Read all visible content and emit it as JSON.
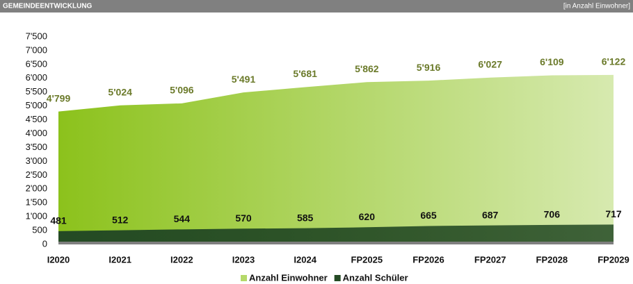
{
  "header": {
    "title": "GEMEINDEENTWICKLUNG",
    "unit": "[in Anzahl Einwohner]"
  },
  "chart_data": {
    "type": "area",
    "categories": [
      "I2020",
      "I2021",
      "I2022",
      "I2023",
      "I2024",
      "FP2025",
      "FP2026",
      "FP2027",
      "FP2028",
      "FP2029"
    ],
    "series": [
      {
        "name": "Anzahl Einwohner",
        "color": "#8cc21c",
        "label_color": "#6b7a2a",
        "values": [
          4799,
          5024,
          5096,
          5491,
          5681,
          5862,
          5916,
          6027,
          6109,
          6122
        ],
        "value_labels": [
          "4'799",
          "5'024",
          "5'096",
          "5'491",
          "5'681",
          "5'862",
          "5'916",
          "6'027",
          "6'109",
          "6'122"
        ]
      },
      {
        "name": "Anzahl Schüler",
        "color": "#244a24",
        "label_color": "#111111",
        "values": [
          481,
          512,
          544,
          570,
          585,
          620,
          665,
          687,
          706,
          717
        ]
      }
    ],
    "ylim": [
      0,
      7500
    ],
    "yticks": [
      0,
      500,
      {
        "value": 1000,
        "label": "1'000"
      },
      {
        "value": 1500,
        "label": "1'500"
      },
      {
        "value": 2000,
        "label": "2'000"
      },
      {
        "value": 2500,
        "label": "2'500"
      },
      {
        "value": 3000,
        "label": "3'000"
      },
      {
        "value": 3500,
        "label": "3'500"
      },
      {
        "value": 4000,
        "label": "4'000"
      },
      {
        "value": 4500,
        "label": "4'500"
      },
      {
        "value": 5000,
        "label": "5'000"
      },
      {
        "value": 5500,
        "label": "5'500"
      },
      {
        "value": 6000,
        "label": "6'000"
      },
      {
        "value": 6500,
        "label": "6'500"
      },
      {
        "value": 7000,
        "label": "7'000"
      },
      {
        "value": 7500,
        "label": "7'500"
      }
    ],
    "legend": "bottom"
  }
}
